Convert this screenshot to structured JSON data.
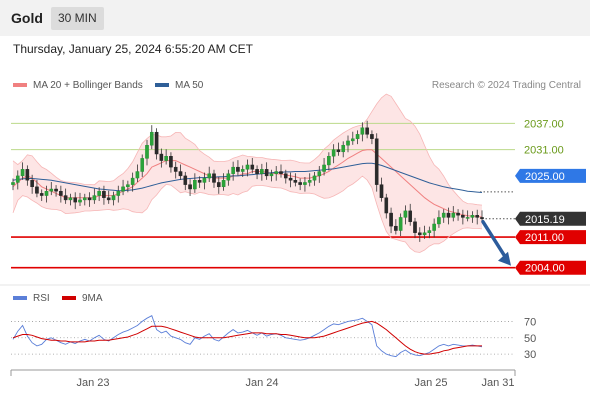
{
  "header": {
    "instrument": "Gold",
    "timeframe": "30 MIN",
    "datetime": "Thursday, January 25, 2024 6:55:20 AM CET",
    "credit": "Research © 2024 Trading Central"
  },
  "colors": {
    "bollinger_line": "#f08080",
    "bollinger_fill": "#fde0e0",
    "ma50": "#2f5f98",
    "support": "#e00000",
    "resistance_green": "#6a9a1a",
    "pivot_blue": "#2f78e6",
    "current": "#333333",
    "rsi": "#5b7fd8",
    "rsi_ma": "#d00000"
  },
  "chart_data": [
    {
      "type": "candlestick",
      "legend": [
        "MA 20 + Bollinger Bands",
        "MA 50"
      ],
      "x_ticks": [
        "Jan 23",
        "Jan 24",
        "Jan 25",
        "Jan 31"
      ],
      "y_range": [
        2000.5,
        2043.5
      ],
      "levels": [
        {
          "value": 2037.0,
          "label": "2037.00",
          "kind": "resistance"
        },
        {
          "value": 2031.0,
          "label": "2031.00",
          "kind": "resistance"
        },
        {
          "value": 2025.0,
          "label": "2025.00",
          "kind": "pivot"
        },
        {
          "value": 2015.19,
          "label": "2015.19",
          "kind": "current"
        },
        {
          "value": 2011.0,
          "label": "2011.00",
          "kind": "support"
        },
        {
          "value": 2004.0,
          "label": "2004.00",
          "kind": "support"
        }
      ],
      "series": [
        {
          "name": "Price",
          "values": [
            2023.5,
            2025.0,
            2026.5,
            2024.0,
            2022.5,
            2021.0,
            2020.5,
            2021.5,
            2022.0,
            2021.5,
            2020.5,
            2019.5,
            2020.0,
            2019.0,
            2019.5,
            2020.0,
            2019.5,
            2020.5,
            2021.5,
            2020.0,
            2019.5,
            2020.5,
            2021.5,
            2022.5,
            2023.0,
            2024.5,
            2026.0,
            2029.0,
            2032.0,
            2035.0,
            2030.0,
            2028.5,
            2029.5,
            2027.0,
            2026.0,
            2025.0,
            2023.0,
            2022.0,
            2024.0,
            2023.5,
            2024.5,
            2025.5,
            2023.5,
            2022.5,
            2024.0,
            2025.5,
            2027.0,
            2026.0,
            2026.5,
            2027.5,
            2026.5,
            2025.5,
            2026.5,
            2025.0,
            2025.5,
            2026.0,
            2025.5,
            2024.5,
            2024.0,
            2023.5,
            2023.0,
            2023.5,
            2024.0,
            2025.0,
            2026.0,
            2027.5,
            2029.5,
            2031.0,
            2030.5,
            2032.0,
            2033.0,
            2033.5,
            2034.5,
            2036.0,
            2034.5,
            2033.5,
            2023.0,
            2020.0,
            2016.5,
            2013.5,
            2012.5,
            2015.5,
            2017.0,
            2014.5,
            2012.0,
            2011.5,
            2012.0,
            2012.5,
            2014.0,
            2015.5,
            2016.5,
            2015.5,
            2016.5,
            2016.0,
            2015.5,
            2015.5,
            2016.0,
            2015.5,
            2015.19
          ]
        },
        {
          "name": "MA 20",
          "values": [
            2022.5,
            2023.5,
            2024.5,
            2025.0,
            2024.5,
            2023.5,
            2022.5,
            2022.0,
            2021.5,
            2021.0,
            2020.5,
            2020.0,
            2020.0,
            2020.0,
            2020.0,
            2020.0,
            2020.0,
            2020.0,
            2020.5,
            2020.5,
            2020.5,
            2020.5,
            2021.0,
            2021.5,
            2022.0,
            2022.5,
            2023.5,
            2024.5,
            2025.5,
            2027.0,
            2027.5,
            2028.0,
            2028.5,
            2028.5,
            2028.5,
            2028.0,
            2027.5,
            2027.0,
            2026.5,
            2026.0,
            2025.5,
            2025.0,
            2024.5,
            2024.5,
            2024.5,
            2024.5,
            2025.0,
            2025.0,
            2025.5,
            2025.5,
            2026.0,
            2026.0,
            2026.0,
            2025.8,
            2025.6,
            2025.5,
            2025.4,
            2025.2,
            2025.0,
            2024.8,
            2024.5,
            2024.5,
            2024.5,
            2024.8,
            2025.0,
            2025.5,
            2026.0,
            2026.8,
            2027.5,
            2028.2,
            2029.0,
            2029.6,
            2030.2,
            2030.8,
            2031.0,
            2031.0,
            2030.0,
            2029.0,
            2028.0,
            2027.0,
            2026.0,
            2025.0,
            2024.0,
            2023.0,
            2022.0,
            2021.0,
            2020.0,
            2019.2,
            2018.5,
            2018.0,
            2017.5,
            2017.0,
            2016.7,
            2016.4,
            2016.1,
            2015.9,
            2015.8,
            2015.7,
            2015.6
          ]
        },
        {
          "name": "MA 50",
          "values": [
            2024.0,
            2024.2,
            2024.3,
            2024.4,
            2024.4,
            2024.3,
            2024.2,
            2024.1,
            2024.0,
            2023.8,
            2023.6,
            2023.4,
            2023.2,
            2023.0,
            2022.8,
            2022.6,
            2022.4,
            2022.2,
            2022.0,
            2021.9,
            2021.8,
            2021.7,
            2021.6,
            2021.6,
            2021.7,
            2021.8,
            2022.0,
            2022.2,
            2022.5,
            2022.8,
            2023.1,
            2023.4,
            2023.6,
            2023.8,
            2024.0,
            2024.2,
            2024.3,
            2024.4,
            2024.5,
            2024.6,
            2024.6,
            2024.7,
            2024.7,
            2024.8,
            2024.8,
            2024.9,
            2025.0,
            2025.0,
            2025.1,
            2025.2,
            2025.3,
            2025.4,
            2025.5,
            2025.6,
            2025.7,
            2025.8,
            2025.8,
            2025.9,
            2025.9,
            2026.0,
            2026.0,
            2026.0,
            2026.1,
            2026.2,
            2026.3,
            2026.4,
            2026.5,
            2026.6,
            2026.8,
            2027.0,
            2027.2,
            2027.4,
            2027.6,
            2027.8,
            2027.9,
            2027.9,
            2027.7,
            2027.4,
            2027.0,
            2026.6,
            2026.2,
            2025.8,
            2025.4,
            2025.0,
            2024.6,
            2024.2,
            2023.8,
            2023.4,
            2023.1,
            2022.8,
            2022.5,
            2022.3,
            2022.1,
            2021.9,
            2021.7,
            2021.5,
            2021.4,
            2021.3,
            2021.2
          ]
        }
      ]
    },
    {
      "type": "line",
      "legend": [
        "RSI",
        "9MA"
      ],
      "y_ticks": [
        70,
        50,
        30
      ],
      "y_range": [
        13,
        84
      ],
      "series": [
        {
          "name": "RSI",
          "values": [
            48,
            58,
            65,
            52,
            44,
            40,
            42,
            48,
            50,
            47,
            44,
            42,
            45,
            43,
            46,
            48,
            46,
            50,
            53,
            48,
            46,
            50,
            54,
            57,
            59,
            62,
            65,
            70,
            74,
            77,
            60,
            56,
            58,
            52,
            50,
            48,
            44,
            42,
            50,
            48,
            52,
            55,
            48,
            46,
            51,
            56,
            60,
            56,
            57,
            59,
            56,
            53,
            56,
            52,
            54,
            55,
            53,
            50,
            49,
            48,
            47,
            48,
            50,
            53,
            56,
            60,
            64,
            67,
            66,
            68,
            70,
            71,
            72,
            74,
            70,
            66,
            40,
            34,
            30,
            28,
            27,
            32,
            35,
            31,
            29,
            28,
            30,
            32,
            36,
            40,
            42,
            40,
            42,
            41,
            40,
            40,
            41,
            40,
            39
          ]
        },
        {
          "name": "9MA",
          "values": [
            50,
            52,
            54,
            54,
            53,
            51,
            49,
            48,
            47,
            47,
            46,
            46,
            45,
            45,
            45,
            45,
            46,
            46,
            47,
            47,
            47,
            48,
            49,
            50,
            51,
            53,
            55,
            58,
            61,
            64,
            64,
            64,
            63,
            61,
            59,
            57,
            55,
            53,
            51,
            50,
            50,
            50,
            50,
            50,
            50,
            51,
            52,
            53,
            54,
            55,
            56,
            56,
            56,
            55,
            55,
            55,
            54,
            54,
            53,
            52,
            51,
            50,
            50,
            50,
            51,
            52,
            54,
            56,
            58,
            60,
            62,
            64,
            66,
            68,
            69,
            70,
            68,
            64,
            60,
            55,
            50,
            45,
            40,
            36,
            33,
            31,
            30,
            30,
            31,
            32,
            34,
            35,
            37,
            38,
            39,
            40,
            40,
            40,
            40
          ]
        }
      ]
    }
  ]
}
